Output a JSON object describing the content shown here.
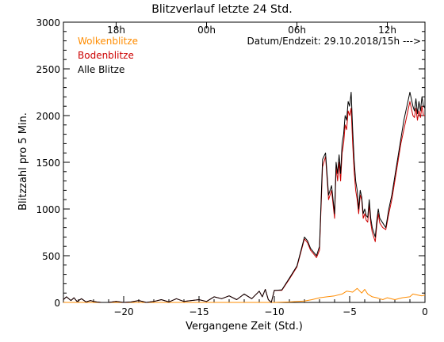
{
  "chart_data": {
    "type": "line",
    "title": "Blitzverlauf letzte 24 Std.",
    "xlabel": "Vergangene Zeit (Std.)",
    "ylabel": "Blitzzahl pro 5 Min.",
    "xlim": [
      -24,
      0
    ],
    "ylim": [
      0,
      3000
    ],
    "x_ticks": [
      -20,
      -15,
      -10,
      -5,
      0
    ],
    "x_tick_labels": [
      "−20",
      "−15",
      "−10",
      "−5",
      "0"
    ],
    "y_ticks": [
      0,
      500,
      1000,
      1500,
      2000,
      2500,
      3000
    ],
    "y_tick_labels": [
      "0",
      "500",
      "1000",
      "1500",
      "2000",
      "2500",
      "3000"
    ],
    "top_axis": {
      "ticks": [
        -20.5,
        -14.5,
        -8.5,
        -2.5
      ],
      "labels": [
        "18h",
        "00h",
        "06h",
        "12h"
      ]
    },
    "annotation": "Datum/Endzeit: 29.10.2018/15h --->",
    "legend_position": "top-left",
    "grid": false,
    "series": [
      {
        "name": "Wolkenblitze",
        "color": "#ff8c00",
        "x": [
          -24,
          -10,
          -9.0,
          -8.0,
          -7.5,
          -7.0,
          -6.5,
          -6.0,
          -5.5,
          -5.2,
          -4.8,
          -4.5,
          -4.2,
          -4.0,
          -3.8,
          -3.5,
          -3.2,
          -3.0,
          -2.8,
          -2.5,
          -2.0,
          -1.5,
          -1.0,
          -0.8,
          -0.5,
          -0.2,
          0
        ],
        "values": [
          0,
          0,
          5,
          15,
          30,
          50,
          60,
          70,
          90,
          120,
          110,
          150,
          100,
          140,
          90,
          60,
          50,
          40,
          30,
          50,
          30,
          50,
          60,
          90,
          80,
          70,
          80
        ]
      },
      {
        "name": "Bodenblitze",
        "color": "#cc0000",
        "x": [
          -24,
          -23.8,
          -23.5,
          -23.3,
          -23.1,
          -22.8,
          -22.5,
          -22.2,
          -22.0,
          -21.8,
          -21.5,
          -21.0,
          -20.5,
          -20.0,
          -19.5,
          -19.0,
          -18.5,
          -18.0,
          -17.5,
          -17.0,
          -16.5,
          -16.0,
          -15.5,
          -15.0,
          -14.5,
          -14.0,
          -13.5,
          -13.0,
          -12.5,
          -12.0,
          -11.5,
          -11.0,
          -10.8,
          -10.6,
          -10.4,
          -10.2,
          -10.0,
          -9.9,
          -9.5,
          -9.0,
          -8.5,
          -8.0,
          -7.8,
          -7.6,
          -7.4,
          -7.2,
          -7.0,
          -6.8,
          -6.6,
          -6.4,
          -6.2,
          -6.0,
          -5.9,
          -5.8,
          -5.7,
          -5.6,
          -5.5,
          -5.4,
          -5.3,
          -5.2,
          -5.1,
          -5.0,
          -4.9,
          -4.8,
          -4.7,
          -4.6,
          -4.5,
          -4.4,
          -4.3,
          -4.2,
          -4.1,
          -4.0,
          -3.9,
          -3.8,
          -3.7,
          -3.6,
          -3.5,
          -3.4,
          -3.3,
          -3.2,
          -3.1,
          -3.0,
          -2.8,
          -2.6,
          -2.4,
          -2.2,
          -2.0,
          -1.8,
          -1.6,
          -1.4,
          -1.2,
          -1.0,
          -0.8,
          -0.7,
          -0.6,
          -0.5,
          -0.4,
          -0.3,
          -0.2,
          -0.1,
          0
        ],
        "values": [
          30,
          60,
          20,
          50,
          10,
          40,
          5,
          20,
          10,
          5,
          0,
          0,
          10,
          0,
          5,
          20,
          0,
          10,
          30,
          5,
          40,
          10,
          20,
          30,
          10,
          60,
          40,
          70,
          30,
          90,
          40,
          120,
          60,
          140,
          30,
          0,
          130,
          130,
          130,
          250,
          380,
          680,
          640,
          560,
          520,
          480,
          560,
          1450,
          1560,
          1100,
          1200,
          900,
          1450,
          1300,
          1500,
          1300,
          1600,
          1700,
          1900,
          1850,
          2050,
          2000,
          2080,
          1700,
          1400,
          1200,
          1100,
          950,
          1150,
          1100,
          900,
          950,
          880,
          860,
          1050,
          850,
          750,
          700,
          650,
          820,
          950,
          850,
          800,
          780,
          950,
          1100,
          1300,
          1500,
          1700,
          1850,
          2000,
          2150,
          2000,
          1980,
          2080,
          1950,
          2050,
          1980,
          2100,
          2000,
          2000
        ]
      },
      {
        "name": "Alle Blitze",
        "color": "#000000",
        "x": [
          -24,
          -23.8,
          -23.5,
          -23.3,
          -23.1,
          -22.8,
          -22.5,
          -22.2,
          -22.0,
          -21.8,
          -21.5,
          -21.0,
          -20.5,
          -20.0,
          -19.5,
          -19.0,
          -18.5,
          -18.0,
          -17.5,
          -17.0,
          -16.5,
          -16.0,
          -15.5,
          -15.0,
          -14.5,
          -14.0,
          -13.5,
          -13.0,
          -12.5,
          -12.0,
          -11.5,
          -11.0,
          -10.8,
          -10.6,
          -10.4,
          -10.2,
          -10.0,
          -9.9,
          -9.5,
          -9.0,
          -8.5,
          -8.0,
          -7.8,
          -7.6,
          -7.4,
          -7.2,
          -7.0,
          -6.8,
          -6.6,
          -6.4,
          -6.2,
          -6.0,
          -5.9,
          -5.8,
          -5.7,
          -5.6,
          -5.5,
          -5.4,
          -5.3,
          -5.2,
          -5.1,
          -5.0,
          -4.9,
          -4.8,
          -4.7,
          -4.6,
          -4.5,
          -4.4,
          -4.3,
          -4.2,
          -4.1,
          -4.0,
          -3.9,
          -3.8,
          -3.7,
          -3.6,
          -3.5,
          -3.4,
          -3.3,
          -3.2,
          -3.1,
          -3.0,
          -2.8,
          -2.6,
          -2.4,
          -2.2,
          -2.0,
          -1.8,
          -1.6,
          -1.4,
          -1.2,
          -1.0,
          -0.8,
          -0.7,
          -0.6,
          -0.5,
          -0.4,
          -0.3,
          -0.2,
          -0.1,
          0
        ],
        "values": [
          30,
          60,
          20,
          50,
          10,
          40,
          5,
          20,
          10,
          5,
          0,
          0,
          10,
          0,
          5,
          20,
          0,
          10,
          30,
          5,
          40,
          10,
          20,
          30,
          10,
          60,
          40,
          70,
          30,
          90,
          40,
          120,
          60,
          140,
          30,
          0,
          130,
          130,
          135,
          260,
          390,
          700,
          660,
          580,
          540,
          500,
          600,
          1530,
          1600,
          1150,
          1250,
          950,
          1500,
          1380,
          1580,
          1380,
          1700,
          1800,
          2000,
          1950,
          2150,
          2100,
          2250,
          1850,
          1520,
          1300,
          1200,
          1000,
          1200,
          1130,
          950,
          1000,
          930,
          910,
          1100,
          900,
          800,
          750,
          700,
          870,
          1000,
          900,
          850,
          800,
          1000,
          1150,
          1350,
          1550,
          1750,
          1950,
          2100,
          2250,
          2100,
          2050,
          2180,
          2020,
          2150,
          2050,
          2200,
          2100,
          2080
        ]
      }
    ]
  }
}
